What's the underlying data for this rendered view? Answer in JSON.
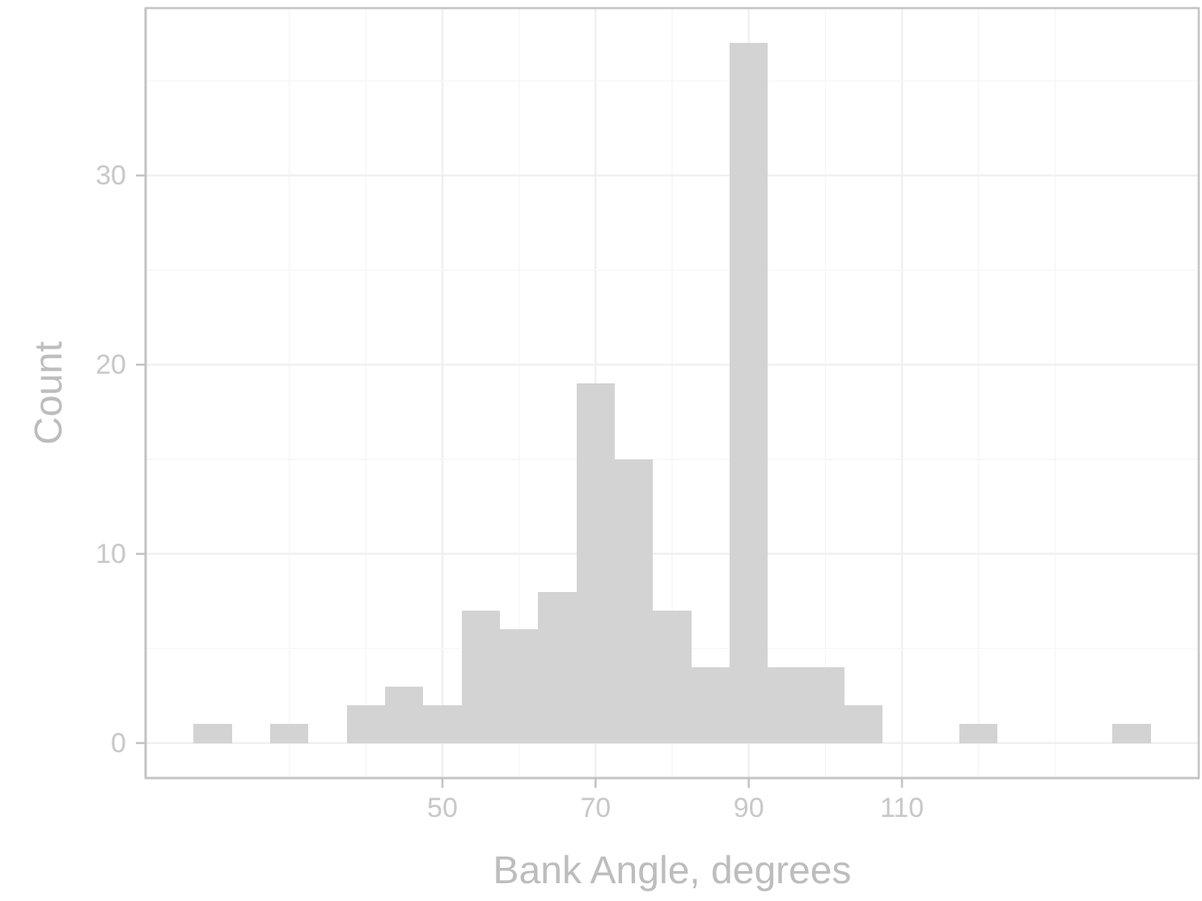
{
  "chart_data": {
    "type": "histogram",
    "xlabel": "Bank Angle, degrees",
    "ylabel": "Count",
    "bins": [
      17.5,
      22.5,
      27.5,
      32.5,
      37.5,
      42.5,
      47.5,
      52.5,
      57.5,
      62.5,
      67.5,
      72.5,
      77.5,
      82.5,
      87.5,
      92.5,
      97.5,
      102.5,
      107.5,
      117.5,
      122.5,
      137.5,
      142.5
    ],
    "values": [
      1,
      0,
      1,
      0,
      2,
      3,
      2,
      7,
      6,
      8,
      19,
      15,
      7,
      4,
      37,
      4,
      4,
      2,
      0,
      1,
      0,
      1
    ],
    "color": "#d3d3d3",
    "xlim": [
      11.25,
      148.75
    ],
    "ylim": [
      -1.85,
      38.85
    ],
    "xticks": [
      50,
      70,
      90,
      110
    ],
    "yticks": [
      0,
      10,
      20,
      30
    ],
    "grid": true
  }
}
